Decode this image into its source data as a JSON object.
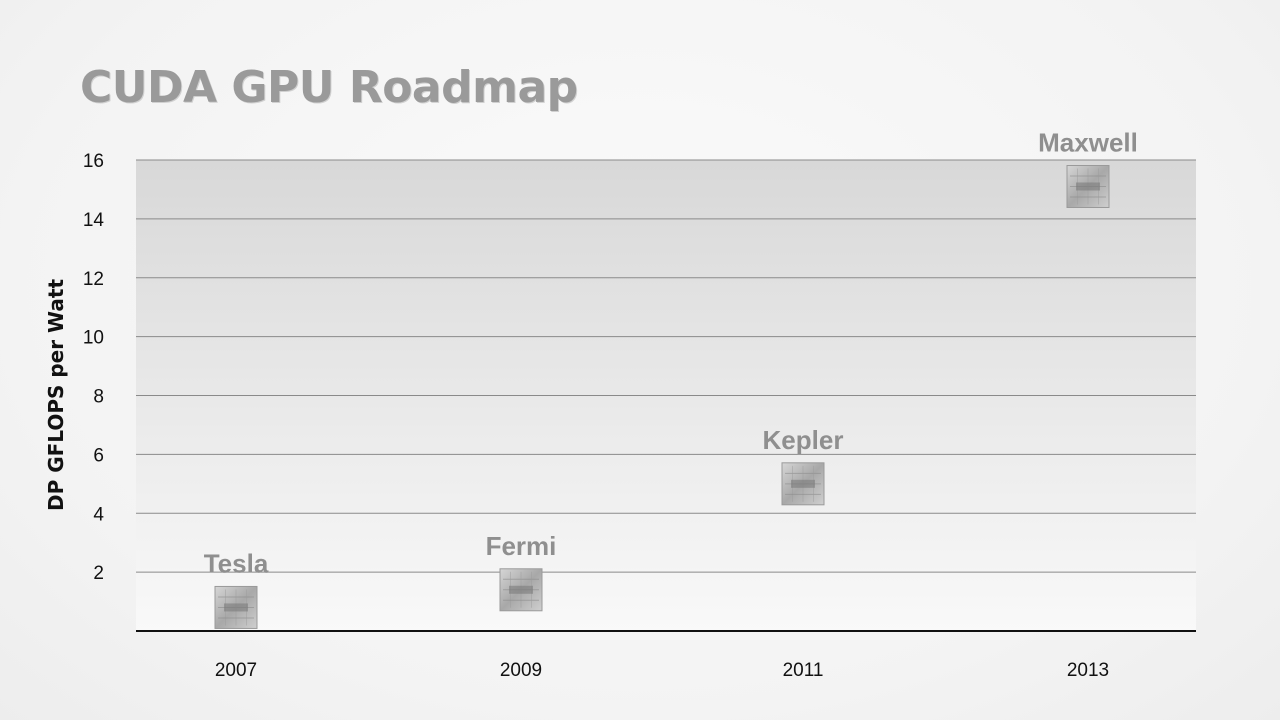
{
  "slide": {
    "title": "CUDA GPU Roadmap"
  },
  "chart_data": {
    "type": "scatter",
    "title": "",
    "xlabel": "",
    "ylabel": "DP GFLOPS per Watt",
    "categories": [
      "2007",
      "2009",
      "2011",
      "2013"
    ],
    "ylim": [
      0,
      16
    ],
    "yticks": [
      2,
      4,
      6,
      8,
      10,
      12,
      14,
      16
    ],
    "grid": true,
    "series": [
      {
        "points": [
          {
            "x": "2007",
            "y": 0.8,
            "label": "Tesla"
          },
          {
            "x": "2009",
            "y": 1.4,
            "label": "Fermi"
          },
          {
            "x": "2011",
            "y": 5.0,
            "label": "Kepler"
          },
          {
            "x": "2013",
            "y": 15.1,
            "label": "Maxwell"
          }
        ]
      }
    ],
    "colors": {
      "background_top": "#d8d8d8",
      "background_bottom": "#f9f9f9",
      "gridline": "#8a8a8a",
      "axis": "#111111",
      "marker": "#b8b8b8",
      "label": "#8f8f8f"
    },
    "marker_icon": "gpu-chip-icon"
  }
}
